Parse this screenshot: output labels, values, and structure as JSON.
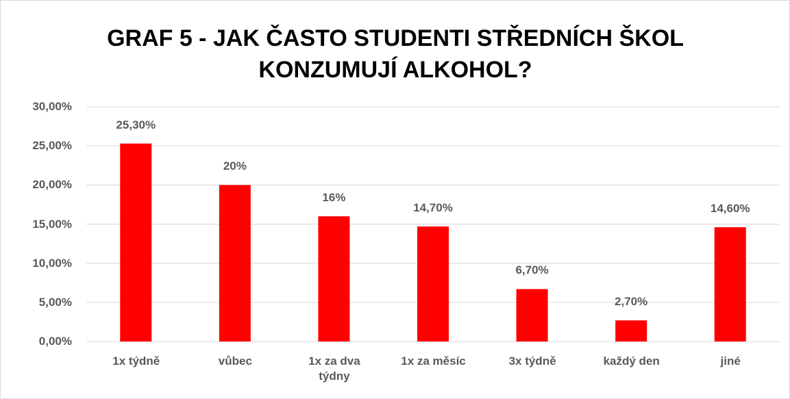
{
  "chart_data": {
    "type": "bar",
    "title": "GRAF 5 - JAK ČASTO STUDENTI STŘEDNÍCH ŠKOL KONZUMUJÍ ALKOHOL?",
    "categories": [
      "1x týdně",
      "vůbec",
      "1x za dva týdny",
      "1x za měsíc",
      "3x týdně",
      "každý den",
      "jiné"
    ],
    "values": [
      25.3,
      20,
      16,
      14.7,
      6.7,
      2.7,
      14.6
    ],
    "value_labels": [
      "25,30%",
      "20%",
      "16%",
      "14,70%",
      "6,70%",
      "2,70%",
      "14,60%"
    ],
    "color": "#ff0000",
    "ylim": [
      0,
      30
    ],
    "yticks": [
      {
        "value": 0,
        "label": "0,00%"
      },
      {
        "value": 5,
        "label": "5,00%"
      },
      {
        "value": 10,
        "label": "10,00%"
      },
      {
        "value": 15,
        "label": "15,00%"
      },
      {
        "value": 20,
        "label": "20,00%"
      },
      {
        "value": 25,
        "label": "25,00%"
      },
      {
        "value": 30,
        "label": "30,00%"
      }
    ],
    "grid": true
  }
}
